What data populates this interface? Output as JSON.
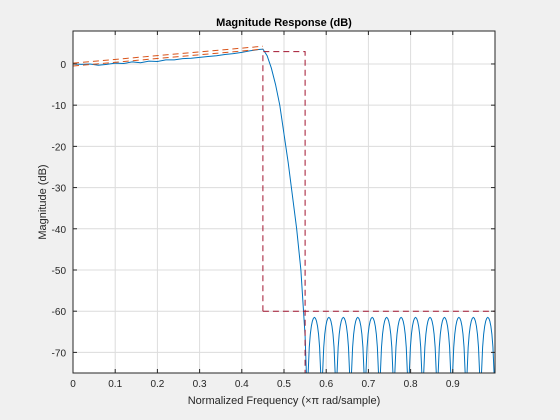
{
  "chart_data": {
    "type": "line",
    "title": "Magnitude Response (dB)",
    "xlabel": "Normalized Frequency (×π rad/sample)",
    "ylabel": "Magnitude (dB)",
    "xlim": [
      0,
      1
    ],
    "ylim": [
      -75,
      8
    ],
    "grid": true,
    "x_ticks": [
      0,
      0.1,
      0.2,
      0.3,
      0.4,
      0.5,
      0.6,
      0.7,
      0.8,
      0.9
    ],
    "x_tick_labels": [
      "0",
      "0.1",
      "0.2",
      "0.3",
      "0.4",
      "0.5",
      "0.6",
      "0.7",
      "0.8",
      "0.9"
    ],
    "y_ticks": [
      0,
      -10,
      -20,
      -30,
      -40,
      -50,
      -60,
      -70
    ],
    "y_tick_labels": [
      "0",
      "-10",
      "-20",
      "-30",
      "-40",
      "-50",
      "-60",
      "-70"
    ],
    "series": [
      {
        "color": "#0072bd",
        "style": "solid",
        "x": [
          0,
          0.02,
          0.04,
          0.06,
          0.08,
          0.1,
          0.12,
          0.14,
          0.16,
          0.18,
          0.2,
          0.22,
          0.24,
          0.26,
          0.28,
          0.3,
          0.32,
          0.34,
          0.36,
          0.38,
          0.4,
          0.42,
          0.44,
          0.45,
          0.46,
          0.47,
          0.48,
          0.49,
          0.5,
          0.51,
          0.52,
          0.53,
          0.54,
          0.545,
          0.55,
          0.553
        ],
        "y": [
          0,
          -0.1,
          0,
          -0.3,
          -0.1,
          0.2,
          0.1,
          0.5,
          0.3,
          0.7,
          0.6,
          1.0,
          1.0,
          1.3,
          1.4,
          1.6,
          1.8,
          2.0,
          2.3,
          2.5,
          2.8,
          3.2,
          3.5,
          3.6,
          2.0,
          -1.0,
          -5.0,
          -10.0,
          -17.0,
          -24.0,
          -32.0,
          -40.0,
          -50.0,
          -58.0,
          -66.0,
          -75.0
        ]
      },
      {
        "color": "#d95319",
        "style": "dashed",
        "x": [
          0,
          0.45
        ],
        "y": [
          -0.5,
          3.6
        ]
      },
      {
        "color": "#d95319",
        "style": "dashed",
        "x": [
          0,
          0.45
        ],
        "y": [
          0.2,
          4.3
        ]
      },
      {
        "color": "#a2142f",
        "style": "dashed",
        "x": [
          0.45,
          0.45,
          0.55,
          0.55
        ],
        "y": [
          -60,
          3,
          3,
          -75
        ]
      },
      {
        "color": "#a2142f",
        "style": "dashed",
        "x": [
          0.45,
          1
        ],
        "y": [
          -60,
          -60
        ]
      }
    ],
    "stopband_lobes": {
      "color": "#0072bd",
      "band_start": 0.555,
      "band_end": 1.0,
      "lobe_count": 13,
      "peak_db": -61.5
    }
  }
}
